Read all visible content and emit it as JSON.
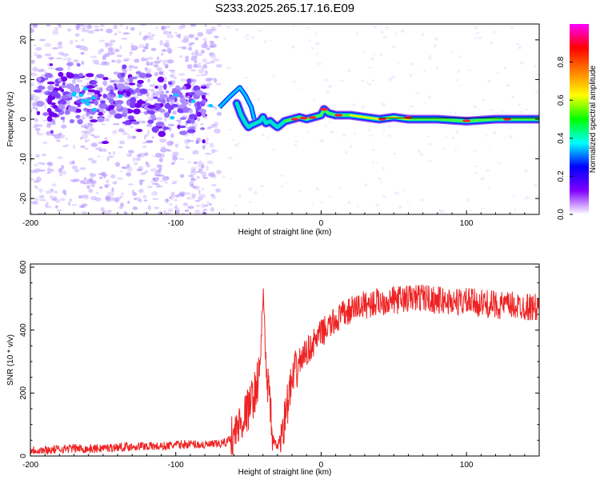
{
  "figure": {
    "title": "S233.2025.265.17.16.E09"
  },
  "chart_data": [
    {
      "type": "heatmap",
      "xlabel": "Height of straight line (km)",
      "ylabel": "Frequency (Hz)",
      "xlim": [
        -200,
        150
      ],
      "ylim": [
        -24,
        24
      ],
      "xticks": [
        -200,
        -100,
        0,
        100
      ],
      "yticks": [
        -20,
        -10,
        0,
        10,
        20
      ],
      "colorbar": {
        "label": "Normalized spectral amplitude",
        "range": [
          0,
          1
        ],
        "ticks": [
          0.0,
          0.2,
          0.4,
          0.6,
          0.8
        ],
        "tick_labels": [
          "0.0",
          "0.2",
          "0.4",
          "0.6",
          "0.8"
        ],
        "colormap": [
          "#ffffff",
          "#8000ff",
          "#0000ff",
          "#00ffff",
          "#00ff00",
          "#ffff00",
          "#ff8000",
          "#ff0000",
          "#ff00ff"
        ]
      },
      "ridge": {
        "x": [
          -58,
          -55,
          -52,
          -50,
          -48,
          -45,
          -42,
          -40,
          -38,
          -35,
          -32,
          -30,
          -25,
          -20,
          -15,
          -10,
          -5,
          0,
          2,
          5,
          10,
          20,
          30,
          40,
          50,
          60,
          80,
          100,
          120,
          150
        ],
        "y": [
          4,
          1,
          -1,
          -2,
          -1.5,
          -1,
          -0.5,
          0.5,
          -1,
          -0.5,
          -1.5,
          -2,
          -0.5,
          0,
          0.5,
          0,
          0.5,
          1,
          2.5,
          1.5,
          1,
          1,
          0.5,
          0,
          0.5,
          0,
          0,
          -0.5,
          0,
          0
        ]
      }
    },
    {
      "type": "line",
      "xlabel": "Height of straight line (km)",
      "ylabel": "SNR (10 * v/v)",
      "xlim": [
        -200,
        150
      ],
      "ylim": [
        0,
        610
      ],
      "xticks": [
        -200,
        -100,
        0,
        100
      ],
      "yticks": [
        0,
        200,
        400,
        600
      ],
      "series": [
        {
          "color": "#ee2222",
          "x": [
            -200,
            -190,
            -180,
            -170,
            -160,
            -150,
            -140,
            -130,
            -120,
            -110,
            -100,
            -90,
            -80,
            -70,
            -65,
            -60,
            -55,
            -50,
            -45,
            -42,
            -40,
            -38,
            -36,
            -35,
            -34,
            -33,
            -32,
            -30,
            -28,
            -26,
            -24,
            -22,
            -20,
            -18,
            -15,
            -12,
            -10,
            -5,
            0,
            5,
            10,
            15,
            20,
            25,
            30,
            40,
            50,
            60,
            70,
            80,
            90,
            100,
            110,
            120,
            130,
            140,
            150
          ],
          "y": [
            20,
            18,
            22,
            25,
            22,
            25,
            28,
            30,
            32,
            30,
            35,
            38,
            35,
            38,
            45,
            70,
            110,
            150,
            210,
            280,
            520,
            300,
            200,
            140,
            80,
            60,
            40,
            30,
            60,
            100,
            140,
            200,
            230,
            260,
            300,
            320,
            330,
            360,
            390,
            410,
            430,
            450,
            460,
            475,
            480,
            490,
            495,
            500,
            505,
            495,
            490,
            490,
            485,
            480,
            478,
            475,
            470
          ]
        }
      ]
    }
  ]
}
